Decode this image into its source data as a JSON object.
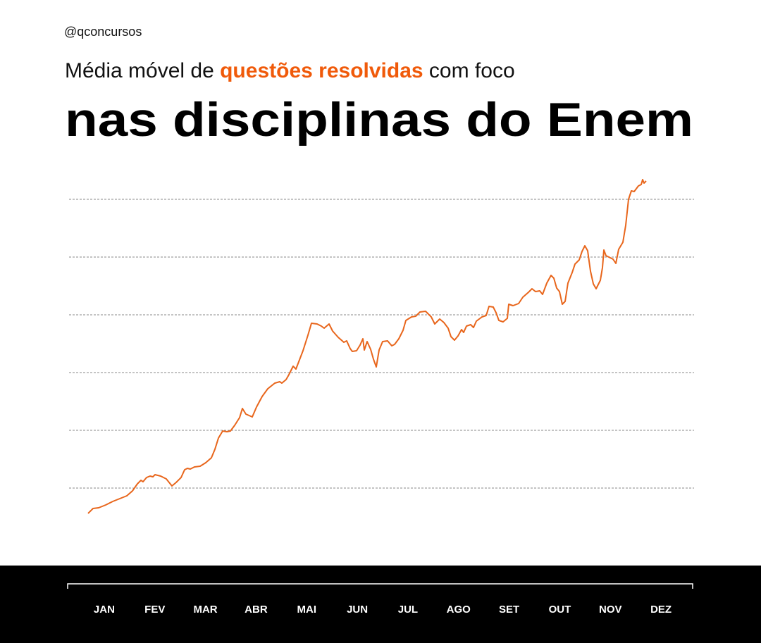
{
  "header": {
    "handle": "@qconcursos",
    "subtitle": [
      "Média móvel de ",
      "questões resolvidas",
      " com foco"
    ],
    "title": "nas disciplinas do Enem"
  },
  "chart_data": {
    "type": "line",
    "categories": [
      "JAN",
      "FEV",
      "MAR",
      "ABR",
      "MAI",
      "JUN",
      "JUL",
      "AGO",
      "SET",
      "OUT",
      "NOV",
      "DEZ"
    ],
    "x": [
      13,
      20,
      28,
      38,
      48,
      58,
      68,
      76,
      83,
      88,
      91,
      96,
      101,
      105,
      108,
      116,
      124,
      132,
      138,
      145,
      150,
      154,
      158,
      164,
      172,
      180,
      188,
      193,
      198,
      204,
      210,
      215,
      221,
      228,
      232,
      237,
      246,
      252,
      260,
      268,
      278,
      285,
      288,
      294,
      298,
      304,
      308,
      318,
      325,
      330,
      338,
      344,
      348,
      355,
      360,
      368,
      376,
      380,
      385,
      388,
      394,
      399,
      403,
      405,
      409,
      414,
      418,
      422,
      426,
      431,
      438,
      444,
      448,
      454,
      460,
      464,
      472,
      478,
      484,
      492,
      500,
      505,
      512,
      518,
      524,
      528,
      533,
      538,
      543,
      546,
      550,
      556,
      560,
      564,
      572,
      578,
      582,
      588,
      592,
      596,
      602,
      608,
      610,
      616,
      624,
      630,
      638,
      643,
      648,
      654,
      658,
      664,
      670,
      674,
      678,
      682,
      686,
      690,
      694,
      700,
      704,
      710,
      714,
      718,
      722,
      726,
      730,
      734,
      740,
      743,
      745,
      748,
      754,
      758,
      762,
      766,
      772,
      776,
      780,
      784,
      788,
      794,
      798,
      800,
      802,
      805
    ],
    "series": [
      {
        "color": "#e8661c",
        "values": [
          46,
          53,
          54,
          58,
          63,
          67,
          71,
          78,
          88,
          93,
          91,
          97,
          99,
          98,
          101,
          99,
          95,
          85,
          90,
          97,
          108,
          110,
          109,
          112,
          113,
          118,
          125,
          137,
          153,
          163,
          162,
          163,
          171,
          182,
          195,
          187,
          183,
          197,
          212,
          223,
          231,
          233,
          231,
          236,
          243,
          255,
          251,
          277,
          299,
          316,
          315,
          312,
          309,
          315,
          305,
          296,
          289,
          291,
          280,
          276,
          277,
          285,
          294,
          278,
          290,
          279,
          265,
          254,
          278,
          290,
          291,
          284,
          286,
          294,
          306,
          320,
          325,
          326,
          332,
          333,
          325,
          315,
          322,
          317,
          309,
          297,
          292,
          298,
          307,
          303,
          312,
          314,
          310,
          319,
          325,
          327,
          340,
          339,
          331,
          320,
          318,
          323,
          343,
          341,
          344,
          353,
          360,
          365,
          361,
          362,
          357,
          373,
          384,
          380,
          366,
          361,
          343,
          347,
          373,
          388,
          400,
          406,
          418,
          426,
          419,
          390,
          372,
          365,
          377,
          395,
          420,
          412,
          409,
          407,
          401,
          421,
          431,
          455,
          492,
          504,
          503,
          511,
          513,
          520,
          515,
          518
        ]
      }
    ],
    "xlim": [
      0,
      862
    ],
    "ylim": [
      0,
      574
    ],
    "grid_lines": [
      82,
      164,
      246,
      328,
      410,
      492
    ],
    "grid": true
  }
}
